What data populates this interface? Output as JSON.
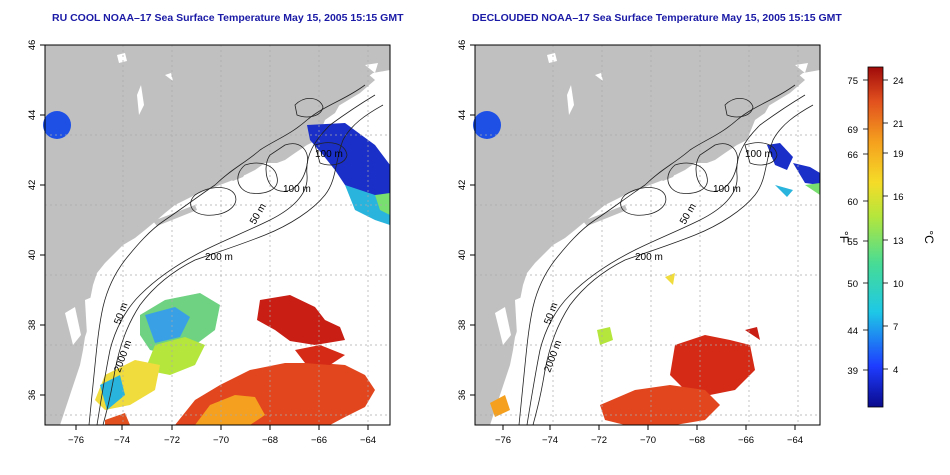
{
  "maps": [
    {
      "title": "RU COOL NOAA–17 Sea Surface Temperature May 15, 2005 15:15 GMT",
      "contour_labels": [
        "100 m",
        "100 m",
        "50 m",
        "200 m",
        "50 m",
        "2000 m"
      ]
    },
    {
      "title": "DECLOUDED NOAA–17 Sea Surface Temperature May 15, 2005 15:15 GMT",
      "contour_labels": [
        "100 m",
        "100 m",
        "50 m",
        "200 m",
        "50 m",
        "2000 m"
      ]
    }
  ],
  "axes": {
    "x_ticks": [
      "−76",
      "−74",
      "−72",
      "−70",
      "−68",
      "−66",
      "−64"
    ],
    "y_ticks": [
      "46",
      "44",
      "42",
      "40",
      "38",
      "36"
    ]
  },
  "colorbar": {
    "f_label": "°F",
    "c_label": "°C",
    "f_ticks": [
      "75",
      "69",
      "66",
      "60",
      "55",
      "50",
      "44",
      "39"
    ],
    "c_ticks": [
      "24",
      "21",
      "19",
      "16",
      "13",
      "10",
      "7",
      "4"
    ]
  },
  "colors": {
    "land": "#c0c0c0",
    "ocean": "#ffffff",
    "title": "#1a1aa6",
    "warm": "#d42a16",
    "cold": "#1a2fc8"
  }
}
